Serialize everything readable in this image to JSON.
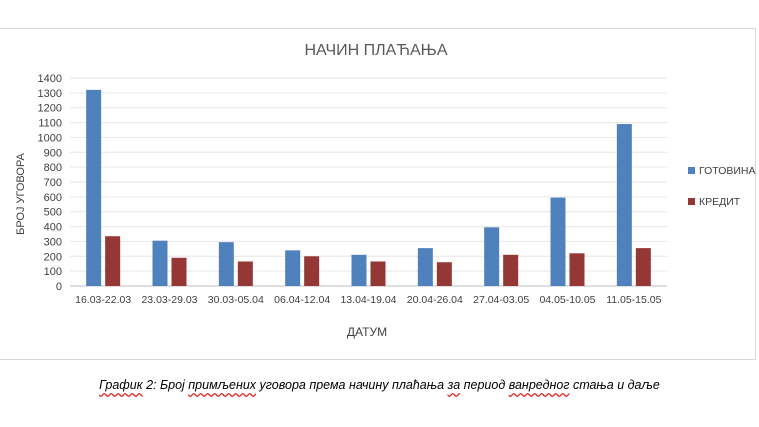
{
  "chart_data": {
    "type": "bar",
    "title": "НАЧИН ПЛАЋАЊА",
    "xlabel": "ДАТУМ",
    "ylabel": "БРОЈ УГОВОРА",
    "ylim": [
      0,
      1400
    ],
    "ytick_step": 100,
    "grid": true,
    "legend_position": "right",
    "categories": [
      "16.03-22.03",
      "23.03-29.03",
      "30.03-05.04",
      "06.04-12.04",
      "13.04-19.04",
      "20.04-26.04",
      "27.04-03.05",
      "04.05-10.05",
      "11.05-15.05"
    ],
    "series": [
      {
        "name": "ГОТОВИНА",
        "color": "#4f81bd",
        "values": [
          1320,
          305,
          295,
          240,
          210,
          255,
          395,
          595,
          1090
        ]
      },
      {
        "name": "КРЕДИТ",
        "color": "#953735",
        "values": [
          335,
          190,
          165,
          200,
          165,
          160,
          210,
          220,
          255
        ]
      }
    ]
  },
  "caption": {
    "word1": "График",
    "part2": " 2: Број",
    "word3": "примљених",
    "part4": " уговора према начину плаћања",
    "word5": "за",
    "part6": " период",
    "word7": "ванредног",
    "part8": " стања и даље"
  }
}
